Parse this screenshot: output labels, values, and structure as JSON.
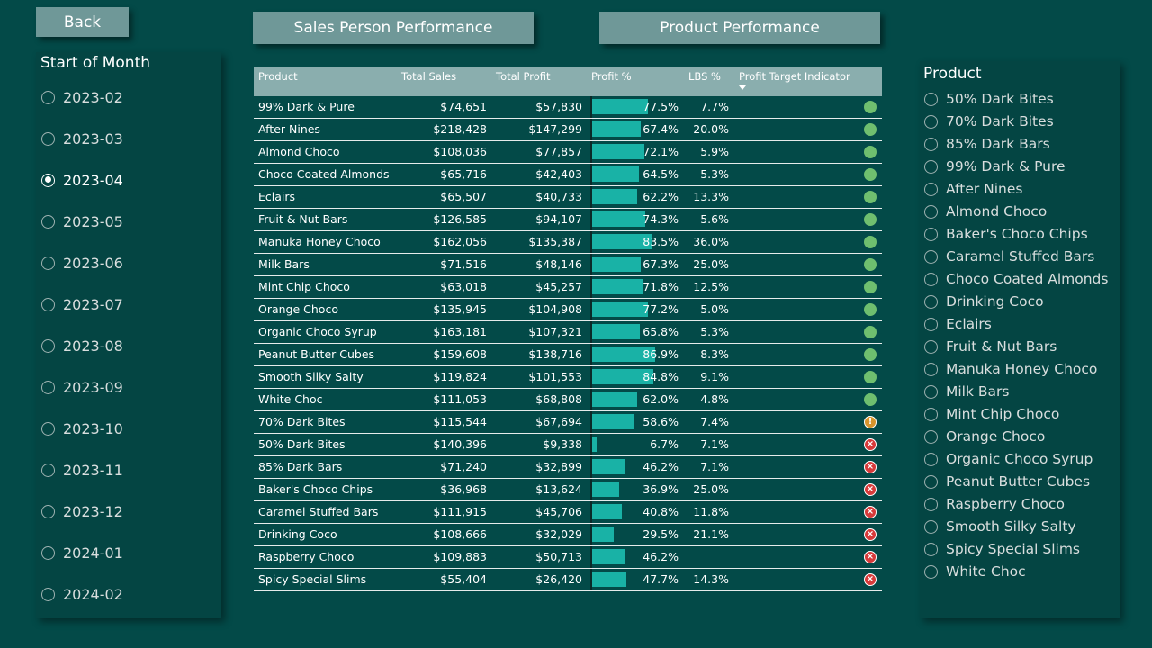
{
  "nav": {
    "back_label": "Back",
    "sales_label": "Sales Person Performance",
    "product_label": "Product Performance"
  },
  "colors": {
    "background": "#034a48",
    "bar": "#19b2a6",
    "good": "#6fbf6f",
    "warning": "#d7942c",
    "bad": "#d63a3a"
  },
  "month_filter": {
    "title": "Start of Month",
    "selected": "2023-04",
    "options": [
      "2023-02",
      "2023-03",
      "2023-04",
      "2023-05",
      "2023-06",
      "2023-07",
      "2023-08",
      "2023-09",
      "2023-10",
      "2023-11",
      "2023-12",
      "2024-01",
      "2024-02"
    ]
  },
  "product_filter": {
    "title": "Product",
    "options": [
      "50% Dark Bites",
      "70% Dark Bites",
      "85% Dark Bars",
      "99% Dark & Pure",
      "After Nines",
      "Almond Choco",
      "Baker's Choco Chips",
      "Caramel Stuffed Bars",
      "Choco Coated Almonds",
      "Drinking Coco",
      "Eclairs",
      "Fruit & Nut Bars",
      "Manuka Honey Choco",
      "Milk Bars",
      "Mint Chip Choco",
      "Orange Choco",
      "Organic Choco Syrup",
      "Peanut Butter Cubes",
      "Raspberry Choco",
      "Smooth Silky Salty",
      "Spicy Special Slims",
      "White Choc"
    ]
  },
  "table": {
    "headers": {
      "product": "Product",
      "total_sales": "Total Sales",
      "total_profit": "Total Profit",
      "profit_pct": "Profit %",
      "lbs_pct": "LBS %",
      "indicator": "Profit Target Indicator"
    },
    "sorted_by": "indicator",
    "rows": [
      {
        "product": "99% Dark & Pure",
        "sales": "$74,651",
        "profit": "$57,830",
        "pct": "77.5%",
        "pct_value": 77.5,
        "lbs": "7.7%",
        "status": "good"
      },
      {
        "product": "After Nines",
        "sales": "$218,428",
        "profit": "$147,299",
        "pct": "67.4%",
        "pct_value": 67.4,
        "lbs": "20.0%",
        "status": "good"
      },
      {
        "product": "Almond Choco",
        "sales": "$108,036",
        "profit": "$77,857",
        "pct": "72.1%",
        "pct_value": 72.1,
        "lbs": "5.9%",
        "status": "good"
      },
      {
        "product": "Choco Coated Almonds",
        "sales": "$65,716",
        "profit": "$42,403",
        "pct": "64.5%",
        "pct_value": 64.5,
        "lbs": "5.3%",
        "status": "good"
      },
      {
        "product": "Eclairs",
        "sales": "$65,507",
        "profit": "$40,733",
        "pct": "62.2%",
        "pct_value": 62.2,
        "lbs": "13.3%",
        "status": "good"
      },
      {
        "product": "Fruit & Nut Bars",
        "sales": "$126,585",
        "profit": "$94,107",
        "pct": "74.3%",
        "pct_value": 74.3,
        "lbs": "5.6%",
        "status": "good"
      },
      {
        "product": "Manuka Honey Choco",
        "sales": "$162,056",
        "profit": "$135,387",
        "pct": "83.5%",
        "pct_value": 83.5,
        "lbs": "36.0%",
        "status": "good"
      },
      {
        "product": "Milk Bars",
        "sales": "$71,516",
        "profit": "$48,146",
        "pct": "67.3%",
        "pct_value": 67.3,
        "lbs": "25.0%",
        "status": "good"
      },
      {
        "product": "Mint Chip Choco",
        "sales": "$63,018",
        "profit": "$45,257",
        "pct": "71.8%",
        "pct_value": 71.8,
        "lbs": "12.5%",
        "status": "good"
      },
      {
        "product": "Orange Choco",
        "sales": "$135,945",
        "profit": "$104,908",
        "pct": "77.2%",
        "pct_value": 77.2,
        "lbs": "5.0%",
        "status": "good"
      },
      {
        "product": "Organic Choco Syrup",
        "sales": "$163,181",
        "profit": "$107,321",
        "pct": "65.8%",
        "pct_value": 65.8,
        "lbs": "5.3%",
        "status": "good"
      },
      {
        "product": "Peanut Butter Cubes",
        "sales": "$159,608",
        "profit": "$138,716",
        "pct": "86.9%",
        "pct_value": 86.9,
        "lbs": "8.3%",
        "status": "good"
      },
      {
        "product": "Smooth Silky Salty",
        "sales": "$119,824",
        "profit": "$101,553",
        "pct": "84.8%",
        "pct_value": 84.8,
        "lbs": "9.1%",
        "status": "good"
      },
      {
        "product": "White Choc",
        "sales": "$111,053",
        "profit": "$68,808",
        "pct": "62.0%",
        "pct_value": 62.0,
        "lbs": "4.8%",
        "status": "good"
      },
      {
        "product": "70% Dark Bites",
        "sales": "$115,544",
        "profit": "$67,694",
        "pct": "58.6%",
        "pct_value": 58.6,
        "lbs": "7.4%",
        "status": "warning"
      },
      {
        "product": "50% Dark Bites",
        "sales": "$140,396",
        "profit": "$9,338",
        "pct": "6.7%",
        "pct_value": 6.7,
        "lbs": "7.1%",
        "status": "bad"
      },
      {
        "product": "85% Dark Bars",
        "sales": "$71,240",
        "profit": "$32,899",
        "pct": "46.2%",
        "pct_value": 46.2,
        "lbs": "7.1%",
        "status": "bad"
      },
      {
        "product": "Baker's Choco Chips",
        "sales": "$36,968",
        "profit": "$13,624",
        "pct": "36.9%",
        "pct_value": 36.9,
        "lbs": "25.0%",
        "status": "bad"
      },
      {
        "product": "Caramel Stuffed Bars",
        "sales": "$111,915",
        "profit": "$45,706",
        "pct": "40.8%",
        "pct_value": 40.8,
        "lbs": "11.8%",
        "status": "bad"
      },
      {
        "product": "Drinking Coco",
        "sales": "$108,666",
        "profit": "$32,029",
        "pct": "29.5%",
        "pct_value": 29.5,
        "lbs": "21.1%",
        "status": "bad"
      },
      {
        "product": "Raspberry Choco",
        "sales": "$109,883",
        "profit": "$50,713",
        "pct": "46.2%",
        "pct_value": 46.2,
        "lbs": "",
        "status": "bad"
      },
      {
        "product": "Spicy Special Slims",
        "sales": "$55,404",
        "profit": "$26,420",
        "pct": "47.7%",
        "pct_value": 47.7,
        "lbs": "14.3%",
        "status": "bad"
      }
    ]
  }
}
